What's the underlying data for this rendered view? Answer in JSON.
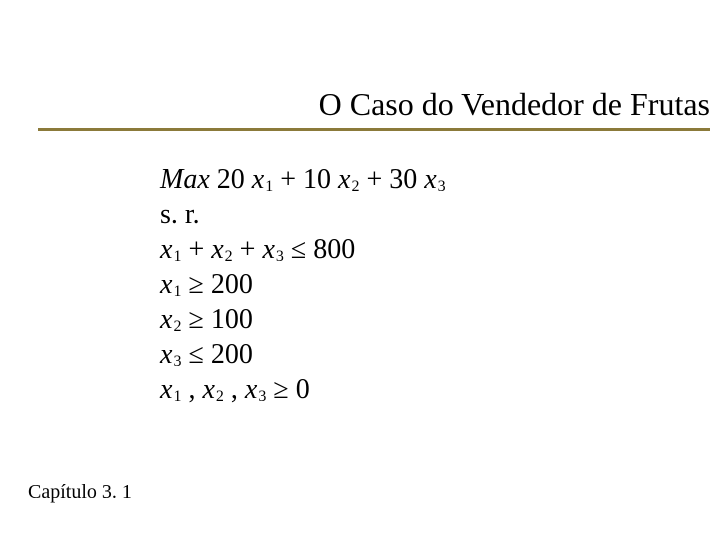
{
  "title": "O Caso do Vendedor de Frutas",
  "footer": "Capítulo 3. 1",
  "colors": {
    "background": "#ffffff",
    "text": "#000000",
    "rule": "#8b7a3a"
  },
  "math": {
    "maxLabel": "Max",
    "srLabel": "s. r.",
    "objective": {
      "c1": "20",
      "c2": "10",
      "c3": "30"
    },
    "var": "x",
    "sub1": "1",
    "sub2": "2",
    "sub3": "3",
    "plus": "+",
    "le": "≤",
    "ge": "≥",
    "comma": ",",
    "zero": "0",
    "rhs": {
      "sum": "800",
      "x1min": "200",
      "x2min": "100",
      "x3max": "200"
    }
  }
}
